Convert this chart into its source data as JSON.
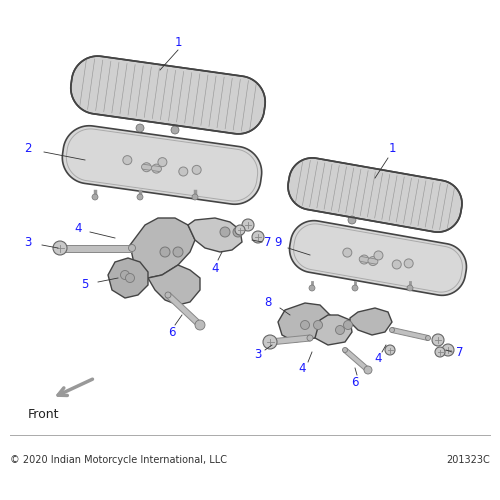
{
  "bg_color": "#ffffff",
  "label_color": "#1a1aff",
  "part_color": "#d0d0d0",
  "part_edge_color": "#444444",
  "rib_color": "#999999",
  "bracket_color": "#b8b8b8",
  "rod_color": "#c0c0c0",
  "bolt_color": "#c8c8c8",
  "line_color": "#555555",
  "copyright_text": "© 2020 Indian Motorcycle International, LLC",
  "part_number": "201323C",
  "front_label": "Front",
  "font_size_labels": 8.5,
  "font_size_copyright": 7.0,
  "font_size_front": 9
}
